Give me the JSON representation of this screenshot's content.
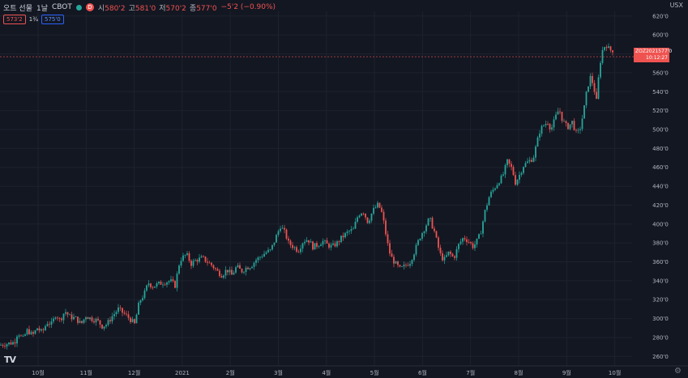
{
  "header": {
    "title": "오트 선물",
    "interval": "1날",
    "exchange": "CBOT",
    "market_badge": "D",
    "ohlc": [
      {
        "k": "시",
        "v": "580'2"
      },
      {
        "k": "고",
        "v": "581'0"
      },
      {
        "k": "저",
        "v": "570'2"
      },
      {
        "k": "종",
        "v": "577'0"
      }
    ],
    "change": "−5'2 (−0.90%)"
  },
  "trade": {
    "sell_price": "573'2",
    "spread": "1¾",
    "buy_price": "575'0"
  },
  "currency_label": "USX",
  "last_price": {
    "contract": "ZOZ2021",
    "price": "577'0",
    "countdown": "10:12:27",
    "value": 577,
    "color": "#ef5350"
  },
  "colors": {
    "background": "#131722",
    "up": "#26a69a",
    "down": "#ef5350",
    "grid": "#1e222d",
    "text": "#b2b5be"
  },
  "icons": {
    "status": "status-dot-icon",
    "logo": "tradingview-logo-icon",
    "settings": "gear-icon"
  },
  "logo_text": "TV",
  "chart_data": {
    "type": "candlestick",
    "ylim": [
      250,
      625
    ],
    "yticks": [
      260,
      280,
      300,
      320,
      340,
      360,
      380,
      400,
      420,
      440,
      460,
      480,
      500,
      520,
      540,
      560,
      580,
      600,
      620
    ],
    "ytick_labels": [
      "260'0",
      "280'0",
      "300'0",
      "320'0",
      "340'0",
      "360'0",
      "380'0",
      "400'0",
      "420'0",
      "440'0",
      "460'0",
      "480'0",
      "500'0",
      "520'0",
      "540'0",
      "560'0",
      "580'0",
      "600'0",
      "620'0"
    ],
    "xtick_labels": [
      "10월",
      "11월",
      "12월",
      "2021",
      "2월",
      "3월",
      "4월",
      "5월",
      "6월",
      "7월",
      "8월",
      "9월",
      "10월"
    ],
    "grid": true,
    "price_points": [
      [
        0,
        272
      ],
      [
        18,
        275
      ],
      [
        22,
        286
      ],
      [
        28,
        278
      ],
      [
        34,
        288
      ],
      [
        40,
        282
      ],
      [
        46,
        290
      ],
      [
        52,
        285
      ],
      [
        58,
        296
      ],
      [
        64,
        294
      ],
      [
        69,
        305
      ],
      [
        74,
        298
      ],
      [
        80,
        308
      ],
      [
        86,
        302
      ],
      [
        94,
        300
      ],
      [
        100,
        294
      ],
      [
        106,
        303
      ],
      [
        112,
        300
      ],
      [
        120,
        298
      ],
      [
        126,
        292
      ],
      [
        132,
        294
      ],
      [
        138,
        302
      ],
      [
        146,
        310
      ],
      [
        152,
        306
      ],
      [
        160,
        300
      ],
      [
        166,
        294
      ],
      [
        172,
        318
      ],
      [
        178,
        326
      ],
      [
        183,
        338
      ],
      [
        188,
        334
      ],
      [
        194,
        336
      ],
      [
        200,
        338
      ],
      [
        210,
        340
      ],
      [
        216,
        335
      ],
      [
        222,
        362
      ],
      [
        230,
        368
      ],
      [
        236,
        358
      ],
      [
        242,
        362
      ],
      [
        250,
        364
      ],
      [
        256,
        360
      ],
      [
        262,
        356
      ],
      [
        268,
        350
      ],
      [
        274,
        346
      ],
      [
        280,
        352
      ],
      [
        286,
        346
      ],
      [
        292,
        355
      ],
      [
        298,
        350
      ],
      [
        304,
        354
      ],
      [
        310,
        356
      ],
      [
        316,
        362
      ],
      [
        322,
        366
      ],
      [
        328,
        370
      ],
      [
        334,
        372
      ],
      [
        340,
        385
      ],
      [
        346,
        398
      ],
      [
        352,
        390
      ],
      [
        356,
        380
      ],
      [
        362,
        376
      ],
      [
        368,
        372
      ],
      [
        374,
        382
      ],
      [
        380,
        384
      ],
      [
        386,
        376
      ],
      [
        392,
        378
      ],
      [
        398,
        382
      ],
      [
        404,
        378
      ],
      [
        410,
        376
      ],
      [
        416,
        380
      ],
      [
        422,
        386
      ],
      [
        430,
        392
      ],
      [
        436,
        394
      ],
      [
        442,
        410
      ],
      [
        448,
        414
      ],
      [
        454,
        402
      ],
      [
        460,
        414
      ],
      [
        466,
        420
      ],
      [
        470,
        416
      ],
      [
        474,
        400
      ],
      [
        478,
        380
      ],
      [
        482,
        366
      ],
      [
        488,
        358
      ],
      [
        494,
        352
      ],
      [
        500,
        356
      ],
      [
        506,
        360
      ],
      [
        512,
        372
      ],
      [
        518,
        386
      ],
      [
        524,
        396
      ],
      [
        530,
        406
      ],
      [
        536,
        392
      ],
      [
        540,
        378
      ],
      [
        544,
        366
      ],
      [
        548,
        362
      ],
      [
        554,
        370
      ],
      [
        560,
        364
      ],
      [
        566,
        378
      ],
      [
        572,
        386
      ],
      [
        578,
        382
      ],
      [
        584,
        376
      ],
      [
        590,
        384
      ],
      [
        594,
        394
      ],
      [
        598,
        412
      ],
      [
        604,
        430
      ],
      [
        610,
        438
      ],
      [
        616,
        446
      ],
      [
        620,
        450
      ],
      [
        626,
        466
      ],
      [
        632,
        458
      ],
      [
        636,
        444
      ],
      [
        640,
        450
      ],
      [
        646,
        462
      ],
      [
        652,
        466
      ],
      [
        658,
        470
      ],
      [
        662,
        484
      ],
      [
        666,
        498
      ],
      [
        670,
        504
      ],
      [
        676,
        508
      ],
      [
        680,
        500
      ],
      [
        686,
        514
      ],
      [
        690,
        522
      ],
      [
        694,
        510
      ],
      [
        700,
        502
      ],
      [
        706,
        508
      ],
      [
        712,
        494
      ],
      [
        716,
        502
      ],
      [
        720,
        518
      ],
      [
        724,
        540
      ],
      [
        728,
        556
      ],
      [
        732,
        548
      ],
      [
        736,
        530
      ],
      [
        740,
        568
      ],
      [
        744,
        586
      ],
      [
        748,
        590
      ],
      [
        752,
        584
      ],
      [
        756,
        584
      ],
      [
        758,
        577
      ]
    ]
  }
}
